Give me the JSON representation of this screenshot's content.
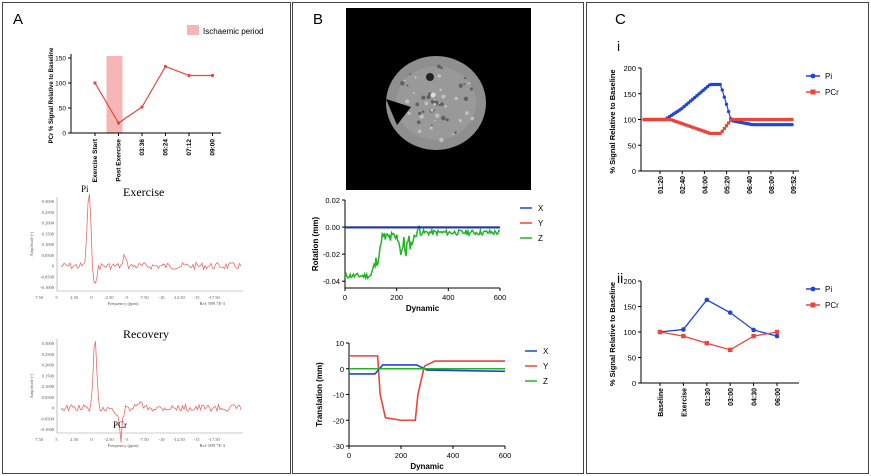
{
  "panels": {
    "A": "A",
    "B": "B",
    "C": "C"
  },
  "colors": {
    "red": "#e8453c",
    "blue": "#2144d8",
    "green": "#21b524",
    "shade": "#f7b6b6",
    "navy": "#1a237e",
    "spec": "#e86a6a"
  },
  "chart_data": [
    {
      "id": "A-top",
      "type": "line",
      "title": "",
      "legend": "Ischaemic period",
      "ylabel": "PCr % Signal Relative to Baseline",
      "xlabel": "",
      "categories": [
        "Exercise Start",
        "Post Exercise",
        "03:36",
        "05:24",
        "07:12",
        "09:00"
      ],
      "series": [
        {
          "name": "PCr",
          "values": [
            100,
            20,
            52,
            133,
            115,
            115
          ]
        }
      ],
      "yticks": [
        "0",
        "50",
        "100",
        "150"
      ],
      "ylim": [
        0,
        150
      ],
      "shaded_category": "Post Exercise"
    },
    {
      "id": "A-exercise",
      "type": "line",
      "title": "Exercise",
      "peak_label": "Pi",
      "ylabel": "Amplitude (-)",
      "xlabel": "Frequency (ppm)",
      "ref": "Ref: 899 7E-3",
      "yticks": [
        "0.3000",
        "0.2500",
        "0.2000",
        "0.1500",
        "0.1000",
        "0.0500",
        "0",
        "-0.0500",
        "-0.1000"
      ],
      "xticks": [
        "7.50",
        "5",
        "2.50",
        "0",
        "-2.50",
        "-5",
        "-7.50",
        "-10",
        "-12.50",
        "-15",
        "-17.50"
      ]
    },
    {
      "id": "A-recovery",
      "type": "line",
      "title": "Recovery",
      "peak_label": "PCr",
      "ylabel": "Amplitude (-)",
      "xlabel": "Frequency (ppm)",
      "ref": "Ref: 899 7E-3",
      "yticks": [
        "0.3000",
        "0.2500",
        "0.2000",
        "0.1500",
        "0.1000",
        "0.0500",
        "0",
        "-0.0500",
        "-0.1000"
      ],
      "xticks": [
        "7.50",
        "5",
        "2.50",
        "0",
        "-2.50",
        "-5",
        "-7.50",
        "-10",
        "-12.50",
        "-15",
        "-17.50"
      ]
    },
    {
      "id": "B-rotation",
      "type": "line",
      "ylabel": "Rotation (mm)",
      "xlabel": "Dynamic",
      "xticks": [
        "0",
        "200",
        "400",
        "600"
      ],
      "yticks": [
        "0.02",
        "0.00",
        "-0.02",
        "-0.04"
      ],
      "xlim": [
        0,
        600
      ],
      "ylim": [
        -0.045,
        0.02
      ],
      "series": [
        {
          "name": "X"
        },
        {
          "name": "Y"
        },
        {
          "name": "Z"
        }
      ]
    },
    {
      "id": "B-translation",
      "type": "line",
      "ylabel": "Translation (mm)",
      "xlabel": "Dynamic",
      "xticks": [
        "0",
        "200",
        "400",
        "600"
      ],
      "yticks": [
        "10",
        "0",
        "-10",
        "-20",
        "-30"
      ],
      "xlim": [
        0,
        600
      ],
      "ylim": [
        -30,
        10
      ],
      "series": [
        {
          "name": "X"
        },
        {
          "name": "Y"
        },
        {
          "name": "Z"
        }
      ]
    },
    {
      "id": "C-i",
      "type": "line",
      "roman": "i",
      "ylabel": "% Signal Relative to Baseline",
      "xticks": [
        "01:20",
        "02:40",
        "04:00",
        "05:20",
        "06:40",
        "08:00",
        "09:52"
      ],
      "yticks": [
        "0",
        "50",
        "100",
        "150",
        "200"
      ],
      "ylim": [
        0,
        200
      ],
      "series": [
        {
          "name": "Pi"
        },
        {
          "name": "PCr"
        }
      ]
    },
    {
      "id": "C-ii",
      "type": "line",
      "roman": "ii",
      "ylabel": "% Signal Relative to Baseline",
      "categories": [
        "Baseline",
        "Exercise",
        "01:30",
        "03:00",
        "04:30",
        "06:00"
      ],
      "yticks": [
        "0",
        "50",
        "100",
        "150",
        "200"
      ],
      "ylim": [
        0,
        200
      ],
      "series": [
        {
          "name": "Pi",
          "values": [
            100,
            105,
            163,
            138,
            104,
            92
          ]
        },
        {
          "name": "PCr",
          "values": [
            100,
            92,
            78,
            65,
            92,
            100
          ]
        }
      ]
    }
  ]
}
